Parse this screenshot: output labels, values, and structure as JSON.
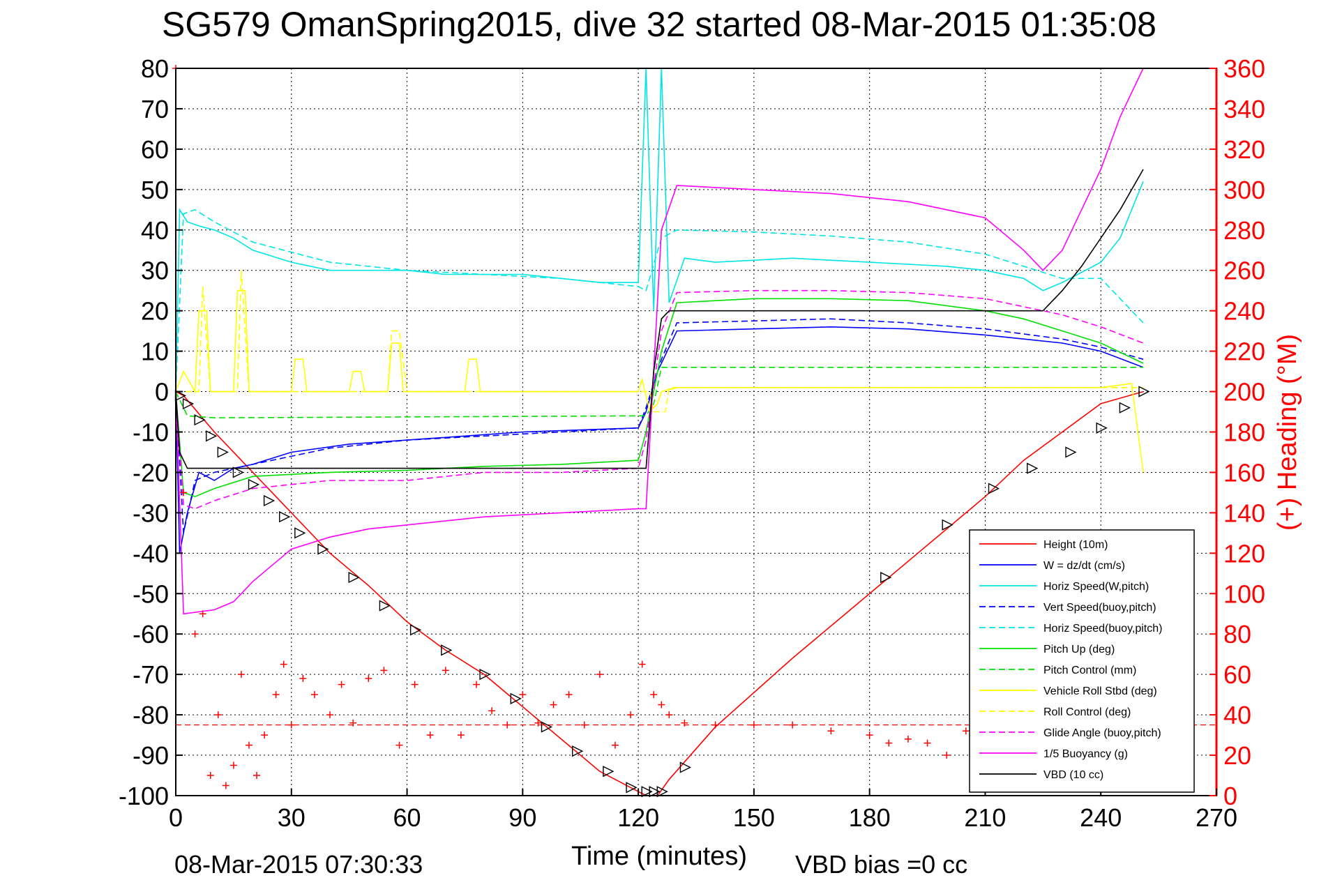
{
  "chart_data": {
    "type": "line",
    "title": "SG579 OmanSpring2015, dive 32 started 08-Mar-2015 01:35:08",
    "xlabel": "Time (minutes)",
    "ylabel_right": "(+) Heading (°M)",
    "footer_left": "08-Mar-2015 07:30:33",
    "footer_center": "VBD bias =0 cc",
    "xlim": [
      0,
      270
    ],
    "ylim_left": [
      -100,
      80
    ],
    "ylim_right": [
      0,
      360
    ],
    "xticks": [
      0,
      30,
      60,
      90,
      120,
      150,
      180,
      210,
      240,
      270
    ],
    "yticks_left": [
      -100,
      -90,
      -80,
      -70,
      -60,
      -50,
      -40,
      -30,
      -20,
      -10,
      0,
      10,
      20,
      30,
      40,
      50,
      60,
      70,
      80
    ],
    "yticks_right": [
      0,
      20,
      40,
      60,
      80,
      100,
      120,
      140,
      160,
      180,
      200,
      220,
      240,
      260,
      280,
      300,
      320,
      340,
      360
    ],
    "grid": true,
    "legend_position": "lower-right",
    "colors": {
      "axis_right": "#ff0000",
      "frame": "#000000",
      "grid": "#000000"
    },
    "series": [
      {
        "name": "Height (10m)",
        "color": "#ff0000",
        "style": "solid",
        "axis": "left",
        "x": [
          0,
          2,
          10,
          20,
          30,
          40,
          50,
          60,
          70,
          80,
          90,
          100,
          110,
          118,
          122,
          125,
          128,
          140,
          160,
          180,
          200,
          210,
          220,
          230,
          240,
          251
        ],
        "y": [
          0,
          -1,
          -10,
          -20,
          -30,
          -40,
          -48,
          -57,
          -64,
          -70,
          -78,
          -86,
          -94,
          -98,
          -100,
          -100,
          -96,
          -83,
          -66,
          -50,
          -34,
          -26,
          -17,
          -10,
          -3,
          0
        ]
      },
      {
        "name": "W = dz/dt (cm/s)",
        "color": "#0000ff",
        "style": "solid",
        "axis": "left",
        "x": [
          0,
          1,
          3,
          6,
          10,
          15,
          20,
          30,
          45,
          60,
          75,
          90,
          105,
          120,
          122,
          125,
          130,
          150,
          170,
          190,
          210,
          220,
          230,
          240,
          251
        ],
        "y": [
          0,
          -40,
          -30,
          -20,
          -22,
          -19,
          -18,
          -15,
          -13,
          -12,
          -11,
          -10,
          -9.5,
          -9,
          -5,
          5,
          15,
          15.5,
          16,
          15.5,
          14,
          13,
          12,
          10,
          6
        ]
      },
      {
        "name": "Horiz Speed(W,pitch)",
        "color": "#00e5e5",
        "style": "solid",
        "axis": "left",
        "x": [
          0,
          1,
          3,
          6,
          10,
          15,
          20,
          30,
          40,
          50,
          60,
          70,
          80,
          90,
          100,
          110,
          120,
          122,
          124,
          126,
          128,
          132,
          140,
          160,
          180,
          200,
          210,
          220,
          225,
          230,
          240,
          245,
          251
        ],
        "y": [
          0,
          45,
          42,
          41,
          40,
          38,
          35,
          32,
          30,
          30,
          30,
          29,
          29,
          29,
          28,
          27,
          27,
          80,
          20,
          80,
          22,
          33,
          32,
          33,
          32,
          31,
          30,
          28,
          25,
          27,
          32,
          38,
          52
        ]
      },
      {
        "name": "Vert Speed(buoy,pitch)",
        "color": "#0000ff",
        "style": "dashed",
        "axis": "left",
        "x": [
          0,
          2,
          5,
          10,
          20,
          40,
          60,
          80,
          100,
          120,
          122,
          126,
          130,
          150,
          170,
          190,
          210,
          230,
          240,
          251
        ],
        "y": [
          0,
          -35,
          -22,
          -20,
          -18,
          -14,
          -12,
          -11,
          -10,
          -9,
          -4,
          8,
          17,
          17.5,
          18,
          17,
          15.5,
          13,
          11,
          8
        ]
      },
      {
        "name": "Horiz Speed(buoy,pitch)",
        "color": "#00e5e5",
        "style": "dashed",
        "axis": "left",
        "x": [
          0,
          2,
          5,
          10,
          20,
          40,
          60,
          80,
          100,
          120,
          122,
          126,
          130,
          150,
          170,
          190,
          210,
          230,
          240,
          251
        ],
        "y": [
          0,
          44,
          45,
          42,
          37,
          32,
          30,
          29,
          28,
          26,
          25,
          38,
          40,
          39.5,
          38.5,
          37,
          34,
          28,
          28,
          17
        ]
      },
      {
        "name": "Pitch Up (deg)",
        "color": "#00e000",
        "style": "solid",
        "axis": "left",
        "x": [
          0,
          2,
          5,
          10,
          20,
          40,
          60,
          80,
          100,
          120,
          122,
          126,
          130,
          150,
          170,
          190,
          210,
          220,
          230,
          240,
          251
        ],
        "y": [
          0,
          -25,
          -26,
          -24,
          -21,
          -20,
          -19.5,
          -18.5,
          -18,
          -17,
          -10,
          10,
          22,
          23,
          23,
          22.5,
          20,
          18,
          15,
          12,
          7
        ]
      },
      {
        "name": "Pitch Control (mm)",
        "color": "#00e000",
        "style": "dashed",
        "axis": "left",
        "x": [
          0,
          3,
          10,
          122,
          124,
          126,
          251
        ],
        "y": [
          0,
          -6,
          -6.5,
          -6,
          -3,
          6,
          6
        ]
      },
      {
        "name": "Vehicle Roll Stbd (deg)",
        "color": "#ffff00",
        "style": "solid",
        "axis": "left",
        "x": [
          0,
          2,
          5,
          6,
          8,
          9,
          15,
          16,
          18,
          19,
          30,
          31,
          33,
          34,
          45,
          46,
          48,
          49,
          55,
          56,
          58,
          59,
          75,
          76,
          78,
          79,
          120,
          121,
          123,
          125,
          126,
          130,
          200,
          210,
          220,
          240,
          248,
          251
        ],
        "y": [
          0,
          5,
          0,
          20,
          20,
          0,
          0,
          25,
          25,
          0,
          0,
          8,
          8,
          0,
          0,
          5,
          5,
          0,
          0,
          12,
          12,
          0,
          0,
          8,
          8,
          0,
          0,
          3,
          -5,
          -3,
          0,
          1,
          1,
          1,
          1,
          1,
          2,
          -20
        ]
      },
      {
        "name": "Roll Control (deg)",
        "color": "#ffff00",
        "style": "dashed",
        "axis": "left",
        "x": [
          0,
          6,
          7,
          9,
          16,
          17,
          19,
          55,
          56,
          58,
          60,
          123,
          124,
          127,
          128,
          251
        ],
        "y": [
          0,
          0,
          26,
          0,
          0,
          30,
          0,
          0,
          15,
          15,
          0,
          0,
          -5,
          -5,
          1,
          1
        ]
      },
      {
        "name": "Glide Angle (buoy,pitch)",
        "color": "#ff00ff",
        "style": "dashed",
        "axis": "left",
        "x": [
          0,
          2,
          5,
          10,
          20,
          40,
          60,
          80,
          100,
          120,
          122,
          126,
          130,
          150,
          170,
          190,
          210,
          230,
          240,
          251
        ],
        "y": [
          0,
          -28,
          -29,
          -27,
          -24,
          -22,
          -22,
          -20,
          -20,
          -19,
          -12,
          15,
          24.5,
          25,
          25,
          24.5,
          23,
          19,
          16,
          12
        ]
      },
      {
        "name": "1/5 Buoyancy (g)",
        "color": "#ff00ff",
        "style": "solid",
        "axis": "left",
        "x": [
          0,
          2,
          10,
          15,
          20,
          25,
          30,
          40,
          50,
          60,
          80,
          100,
          120,
          122,
          126,
          130,
          150,
          170,
          190,
          210,
          220,
          225,
          230,
          235,
          240,
          245,
          251
        ],
        "y": [
          0,
          -55,
          -54,
          -52,
          -47,
          -43,
          -39,
          -36,
          -34,
          -33,
          -31,
          -30,
          -29,
          -29,
          40,
          51,
          50,
          49,
          47,
          43,
          35,
          30,
          35,
          45,
          55,
          68,
          80
        ]
      },
      {
        "name": "VBD (10 cc)",
        "color": "#000000",
        "style": "solid",
        "axis": "left",
        "x": [
          0,
          1,
          3,
          122,
          124,
          126,
          128,
          225,
          230,
          235,
          240,
          245,
          251
        ],
        "y": [
          0,
          -15,
          -19,
          -19,
          5,
          18,
          20,
          20,
          25,
          31,
          38,
          45,
          55
        ]
      },
      {
        "name": "Heading",
        "color": "#ff0000",
        "style": "markers",
        "axis": "right",
        "x": [
          0,
          2,
          5,
          7,
          9,
          11,
          13,
          15,
          17,
          19,
          21,
          23,
          26,
          28,
          30,
          33,
          36,
          40,
          43,
          46,
          50,
          54,
          58,
          62,
          66,
          70,
          74,
          78,
          82,
          86,
          90,
          94,
          98,
          102,
          106,
          110,
          114,
          118,
          121,
          124,
          126,
          128,
          132,
          140,
          150,
          160,
          170,
          180,
          185,
          190,
          195,
          200,
          205,
          210
        ],
        "y": [
          360,
          150,
          80,
          90,
          10,
          40,
          5,
          15,
          60,
          25,
          10,
          30,
          50,
          65,
          35,
          58,
          50,
          40,
          55,
          36,
          58,
          62,
          25,
          55,
          30,
          62,
          30,
          55,
          42,
          35,
          50,
          36,
          45,
          50,
          35,
          60,
          25,
          40,
          65,
          50,
          45,
          40,
          36,
          35,
          35,
          35,
          32,
          30,
          26,
          28,
          26,
          20,
          32,
          35
        ]
      }
    ],
    "legend_entries": [
      "Height (10m)",
      "W = dz/dt (cm/s)",
      "Horiz Speed(W,pitch)",
      "Vert Speed(buoy,pitch)",
      "Horiz Speed(buoy,pitch)",
      "Pitch Up (deg)",
      "Pitch Control (mm)",
      "Vehicle Roll Stbd (deg)",
      "Roll Control (deg)",
      "Glide Angle (buoy,pitch)",
      "1/5 Buoyancy (g)",
      "VBD (10 cc)"
    ],
    "reference_lines": [
      {
        "axis": "right",
        "y": 35,
        "color": "#ff0000",
        "style": "dashed"
      }
    ],
    "triangle_markers": {
      "color": "#000000",
      "x": [
        1,
        3,
        6,
        9,
        12,
        16,
        20,
        24,
        28,
        32,
        38,
        46,
        54,
        62,
        70,
        80,
        88,
        96,
        104,
        112,
        118,
        122,
        124,
        126,
        132,
        184,
        200,
        212,
        222,
        232,
        240,
        246,
        251
      ],
      "y": [
        -1,
        -3,
        -7,
        -11,
        -15,
        -20,
        -23,
        -27,
        -31,
        -35,
        -39,
        -46,
        -53,
        -59,
        -64,
        -70,
        -76,
        -83,
        -89,
        -94,
        -98,
        -99,
        -99,
        -99,
        -93,
        -46,
        -33,
        -24,
        -19,
        -15,
        -9,
        -4,
        0
      ]
    }
  }
}
